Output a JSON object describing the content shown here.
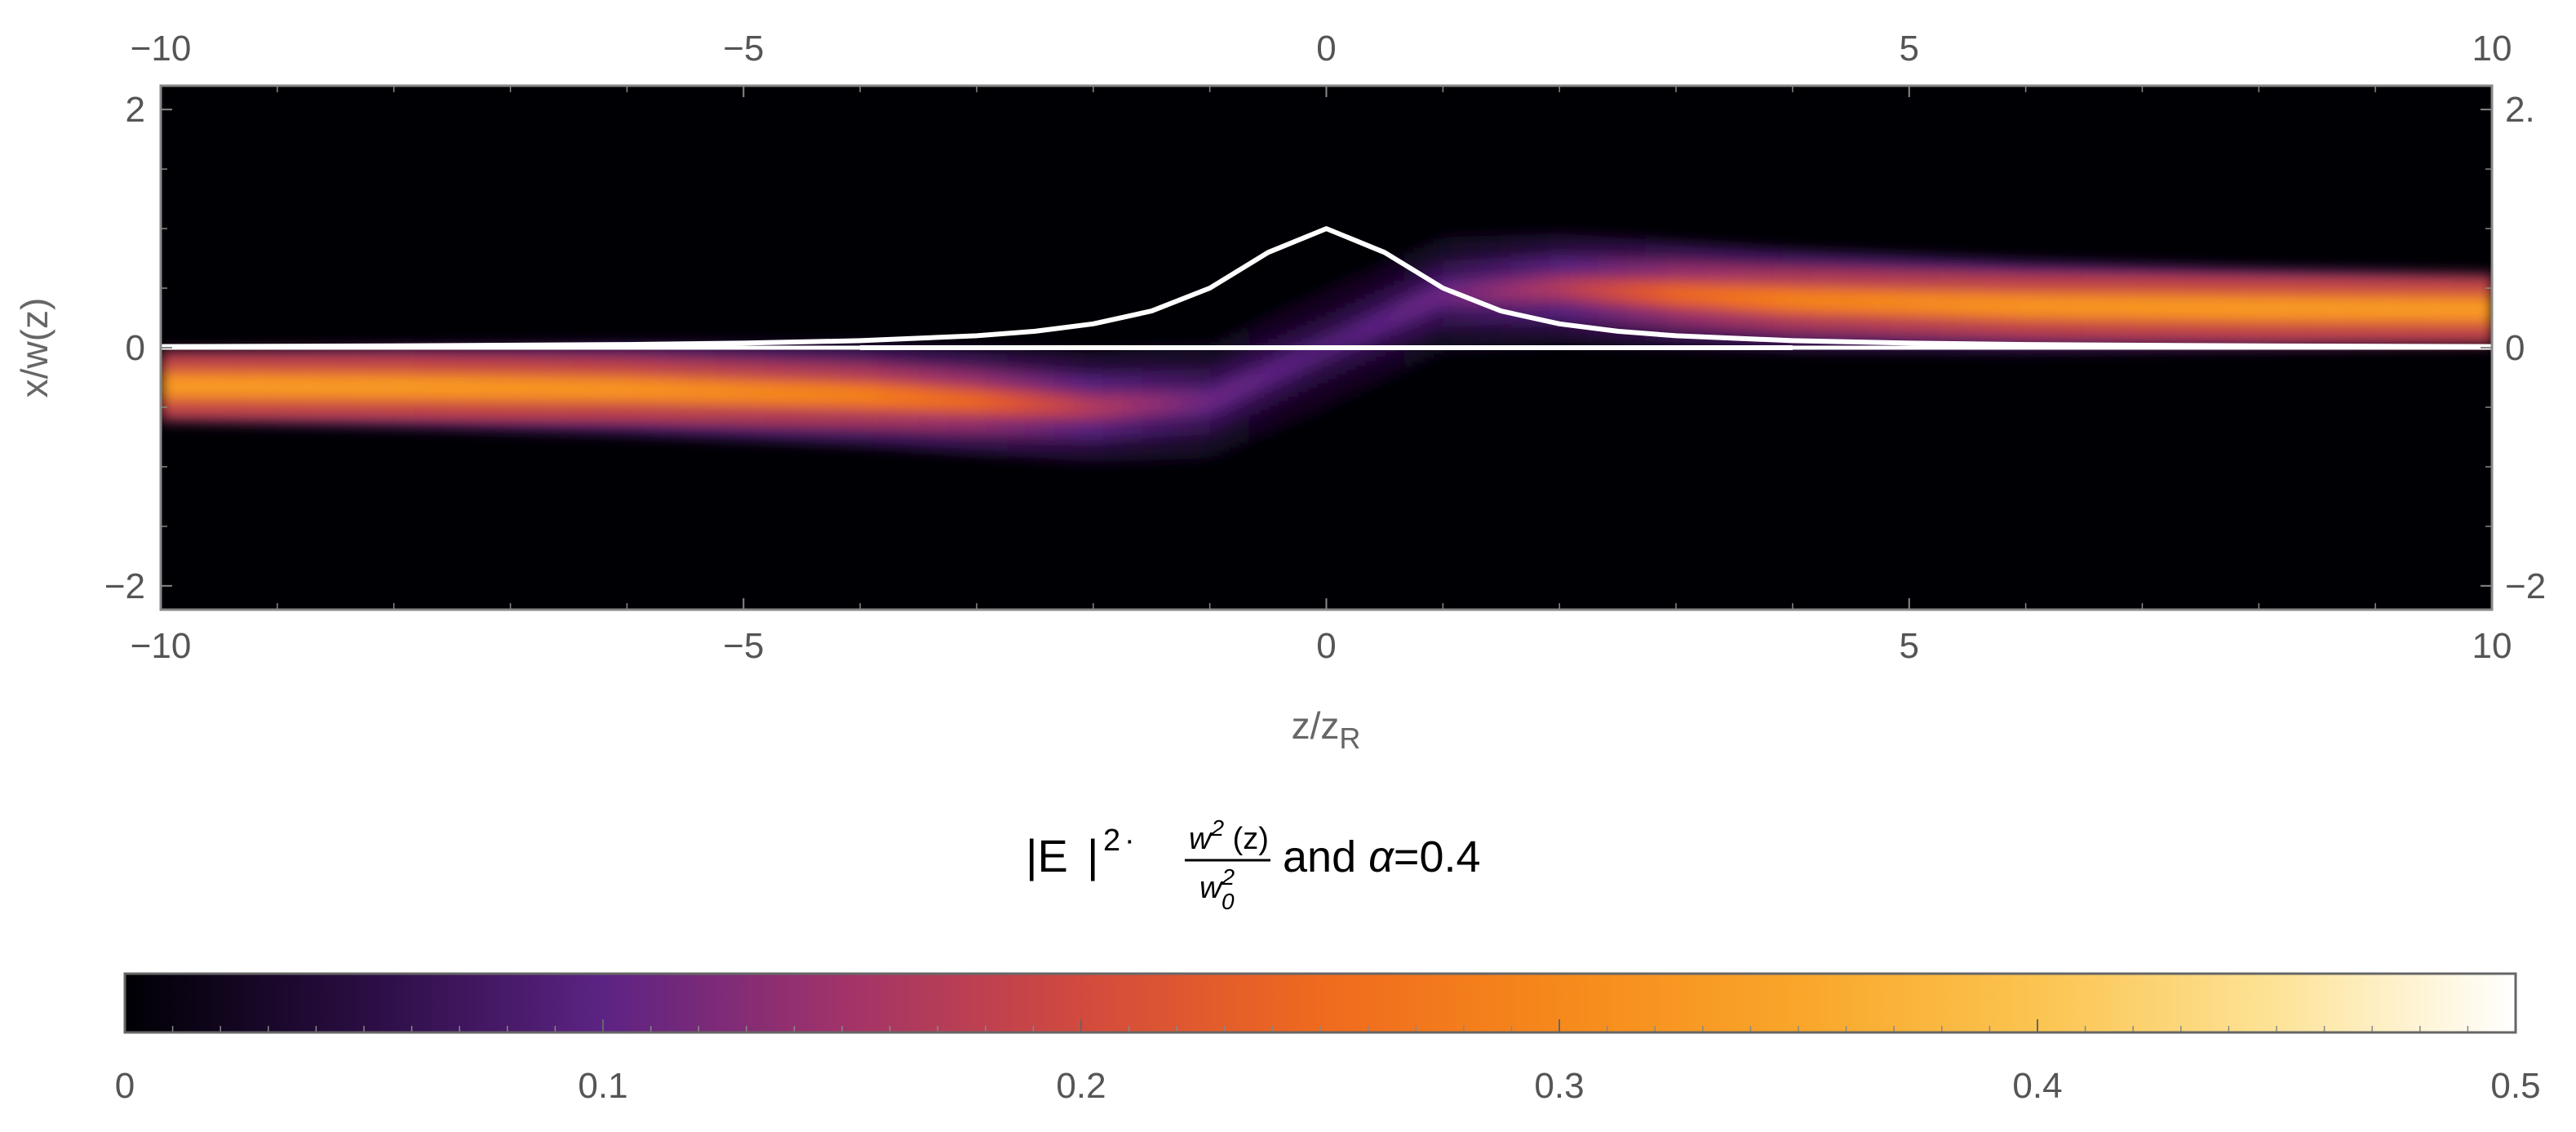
{
  "chart_data": {
    "type": "heatmap",
    "title_parts": {
      "abs_open": "|E",
      "abs_close": "|",
      "power": "2",
      "dot": "·",
      "num_base": "w",
      "num_sup": "2",
      "num_arg": " (z)",
      "den_base": "w",
      "den_sup": "2",
      "den_sub": "0",
      "and_text": " and ",
      "alpha_symbol": "α",
      "alpha_eq": "=0.4"
    },
    "xlabel_base": "z/z",
    "xlabel_sub": "R",
    "ylabel": "x/w(z)",
    "xlim": [
      -10,
      10
    ],
    "ylim": [
      -2.2,
      2.2
    ],
    "x_ticks": [
      "−10",
      "−5",
      "0",
      "5",
      "10"
    ],
    "x_tick_values": [
      -10,
      -5,
      0,
      5,
      10
    ],
    "y_ticks": [
      "−2",
      "0",
      "2"
    ],
    "y_tick_values": [
      -2,
      0,
      2
    ],
    "right_y_ticks": [
      "−2",
      "0",
      "2."
    ],
    "alpha": 0.4,
    "intensity_profile": {
      "z": [
        -10,
        -8,
        -6,
        -4,
        -3,
        -2,
        -1,
        0,
        1,
        2,
        3,
        4,
        6,
        8,
        10
      ],
      "center_x": [
        -0.32,
        -0.33,
        -0.35,
        -0.4,
        -0.45,
        -0.5,
        -0.45,
        0.0,
        0.45,
        0.5,
        0.45,
        0.4,
        0.35,
        0.33,
        0.32
      ],
      "peak_intensity": [
        0.3,
        0.3,
        0.29,
        0.26,
        0.22,
        0.15,
        0.1,
        0.08,
        0.1,
        0.15,
        0.22,
        0.26,
        0.29,
        0.3,
        0.3
      ]
    },
    "overlay_curve": {
      "description_formula": "1/(1+z^2)",
      "x": [
        -10,
        -8,
        -6,
        -5,
        -4,
        -3,
        -2.5,
        -2,
        -1.5,
        -1,
        -0.5,
        0,
        0.5,
        1,
        1.5,
        2,
        2.5,
        3,
        4,
        5,
        6,
        8,
        10
      ],
      "y": [
        0.0099,
        0.0154,
        0.027,
        0.0385,
        0.0588,
        0.1,
        0.138,
        0.2,
        0.308,
        0.5,
        0.8,
        1.0,
        0.8,
        0.5,
        0.308,
        0.2,
        0.138,
        0.1,
        0.0588,
        0.0385,
        0.027,
        0.0154,
        0.0099
      ],
      "color": "#ffffff"
    },
    "overlay_baseline": {
      "x": [
        -4,
        4
      ],
      "y": [
        0,
        0
      ],
      "color": "#ffffff"
    },
    "colorbar": {
      "min": 0,
      "max": 0.5,
      "ticks": [
        "0",
        "0.1",
        "0.2",
        "0.3",
        "0.4",
        "0.5"
      ],
      "tick_values": [
        0,
        0.1,
        0.2,
        0.3,
        0.4,
        0.5
      ],
      "colormap": [
        {
          "v": 0.0,
          "color": "#000004"
        },
        {
          "v": 0.05,
          "color": "#2a0d42"
        },
        {
          "v": 0.1,
          "color": "#5c2384"
        },
        {
          "v": 0.15,
          "color": "#a1336a"
        },
        {
          "v": 0.2,
          "color": "#d24a3e"
        },
        {
          "v": 0.25,
          "color": "#ef6a1e"
        },
        {
          "v": 0.3,
          "color": "#f6891b"
        },
        {
          "v": 0.35,
          "color": "#f9a62a"
        },
        {
          "v": 0.4,
          "color": "#fbc450"
        },
        {
          "v": 0.45,
          "color": "#fde397"
        },
        {
          "v": 0.5,
          "color": "#ffffff"
        }
      ]
    },
    "background_color": "#000004",
    "frame_color": "#888888"
  }
}
